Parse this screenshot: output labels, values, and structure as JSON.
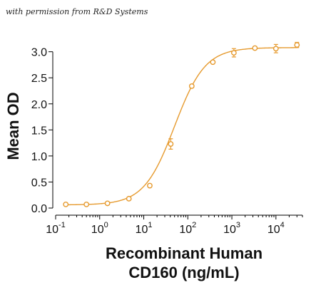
{
  "credit_note": "with permission from R&D Systems",
  "chart_data": {
    "type": "scatter",
    "x_scale": "log",
    "xlim": [
      0.1,
      40000
    ],
    "ylim": [
      0.0,
      3.2
    ],
    "x_ticks": [
      {
        "base": "10",
        "exp": "-1",
        "value": 0.1
      },
      {
        "base": "10",
        "exp": "0",
        "value": 1
      },
      {
        "base": "10",
        "exp": "1",
        "value": 10
      },
      {
        "base": "10",
        "exp": "2",
        "value": 100
      },
      {
        "base": "10",
        "exp": "3",
        "value": 1000
      },
      {
        "base": "10",
        "exp": "4",
        "value": 10000
      }
    ],
    "y_ticks": [
      "0.0",
      "0.5",
      "1.0",
      "1.5",
      "2.0",
      "2.5",
      "3.0"
    ],
    "ylabel": "Mean OD",
    "xlabel_line1": "Recombinant Human",
    "xlabel_line2": "CD160 (ng/mL)",
    "grid": false,
    "series": [
      {
        "color": "#E69A2E",
        "points": [
          {
            "x": 0.17,
            "y": 0.07,
            "err": 0.0
          },
          {
            "x": 0.5,
            "y": 0.07,
            "err": 0.0
          },
          {
            "x": 1.5,
            "y": 0.09,
            "err": 0.0
          },
          {
            "x": 4.6,
            "y": 0.18,
            "err": 0.0
          },
          {
            "x": 13.7,
            "y": 0.43,
            "err": 0.03
          },
          {
            "x": 41,
            "y": 1.23,
            "err": 0.1
          },
          {
            "x": 123,
            "y": 2.34,
            "err": 0.03
          },
          {
            "x": 370,
            "y": 2.8,
            "err": 0.0
          },
          {
            "x": 1111,
            "y": 2.98,
            "err": 0.08
          },
          {
            "x": 3333,
            "y": 3.07,
            "err": 0.03
          },
          {
            "x": 10000,
            "y": 3.06,
            "err": 0.08
          },
          {
            "x": 30000,
            "y": 3.13,
            "err": 0.05
          }
        ],
        "fit": {
          "bottom": 0.06,
          "top": 3.08,
          "ec50": 50,
          "hill": 1.25
        }
      }
    ]
  }
}
